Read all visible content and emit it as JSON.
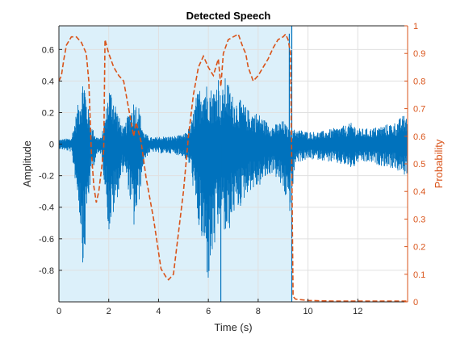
{
  "chart_data": {
    "type": "line",
    "title": "Detected Speech",
    "xlabel": "Time (s)",
    "ylabel_left": "Amplitude",
    "ylabel_right": "Probability",
    "xlim": [
      0,
      14
    ],
    "ylim_left": [
      -1,
      0.75
    ],
    "ylim_right": [
      0,
      1
    ],
    "grid": true,
    "legend": "none",
    "x_ticks": [
      0,
      2,
      4,
      6,
      8,
      10,
      12
    ],
    "y_ticks_left": [
      -0.8,
      -0.6,
      -0.4,
      -0.2,
      0,
      0.2,
      0.4,
      0.6
    ],
    "y_ticks_right": [
      0,
      0.1,
      0.2,
      0.3,
      0.4,
      0.5,
      0.6,
      0.7,
      0.8,
      0.9,
      1
    ],
    "speech_region": {
      "start": 0,
      "end": 9.35
    },
    "colors": {
      "waveform": "#0072BD",
      "probability": "#D95319",
      "speech_fill": "#DCF0FA",
      "speech_edge": "#0072BD",
      "grid": "#E0E0E0",
      "axis": "#262626"
    },
    "series": [
      {
        "axis": "left",
        "style": "waveform",
        "envelope": {
          "x": [
            0,
            0.5,
            0.8,
            0.9,
            1.0,
            1.1,
            1.3,
            1.5,
            1.7,
            1.9,
            2.0,
            2.2,
            2.4,
            2.6,
            2.8,
            3.0,
            3.2,
            3.4,
            3.6,
            3.8,
            4.0,
            4.5,
            5.0,
            5.3,
            5.5,
            5.8,
            6.0,
            6.2,
            6.4,
            6.5,
            6.7,
            7.0,
            7.3,
            7.6,
            8.0,
            8.3,
            8.6,
            9.0,
            9.3,
            9.5,
            10.0,
            10.5,
            11.0,
            11.5,
            11.8,
            12.0,
            12.5,
            13.0,
            13.5,
            13.8,
            14.0
          ],
          "upper": [
            0.03,
            0.04,
            0.28,
            0.35,
            0.48,
            0.3,
            0.12,
            0.05,
            0.04,
            0.22,
            0.38,
            0.32,
            0.18,
            0.1,
            0.2,
            0.28,
            0.25,
            0.08,
            0.05,
            0.04,
            0.05,
            0.05,
            0.06,
            0.12,
            0.3,
            0.42,
            0.38,
            0.35,
            0.45,
            0.3,
            0.44,
            0.3,
            0.28,
            0.22,
            0.2,
            0.15,
            0.12,
            0.15,
            0.08,
            0.1,
            0.08,
            0.08,
            0.1,
            0.12,
            0.14,
            0.1,
            0.1,
            0.12,
            0.14,
            0.18,
            0.2
          ],
          "lower": [
            -0.03,
            -0.05,
            -0.4,
            -0.6,
            -0.87,
            -0.5,
            -0.2,
            -0.08,
            -0.06,
            -0.35,
            -0.58,
            -0.45,
            -0.3,
            -0.15,
            -0.3,
            -0.55,
            -0.4,
            -0.12,
            -0.06,
            -0.05,
            -0.06,
            -0.06,
            -0.08,
            -0.15,
            -0.45,
            -0.7,
            -0.9,
            -0.7,
            -0.6,
            -0.4,
            -0.65,
            -0.45,
            -0.4,
            -0.3,
            -0.28,
            -0.22,
            -0.18,
            -0.3,
            -0.45,
            -0.12,
            -0.1,
            -0.1,
            -0.12,
            -0.14,
            -0.16,
            -0.12,
            -0.12,
            -0.14,
            -0.16,
            -0.2,
            -0.2
          ]
        },
        "spikes": [
          {
            "x": 6.5,
            "y": -1.0
          },
          {
            "x": 9.25,
            "y": 0.7
          }
        ]
      },
      {
        "axis": "right",
        "style": "dashed",
        "x": [
          0.0,
          0.1,
          0.2,
          0.3,
          0.5,
          0.7,
          0.9,
          1.1,
          1.2,
          1.3,
          1.4,
          1.5,
          1.6,
          1.8,
          1.85,
          2.0,
          2.2,
          2.4,
          2.6,
          2.7,
          2.8,
          2.9,
          3.0,
          3.1,
          3.3,
          3.5,
          3.8,
          4.0,
          4.1,
          4.3,
          4.4,
          4.6,
          4.8,
          5.0,
          5.2,
          5.4,
          5.6,
          5.8,
          6.0,
          6.2,
          6.4,
          6.5,
          6.6,
          6.8,
          7.0,
          7.2,
          7.4,
          7.5,
          7.6,
          7.8,
          8.0,
          8.2,
          8.4,
          8.6,
          8.8,
          9.0,
          9.1,
          9.2,
          9.3,
          9.35,
          9.4,
          9.5,
          10.0,
          11.0,
          12.0,
          13.0,
          14.0
        ],
        "values": [
          0.8,
          0.82,
          0.88,
          0.93,
          0.96,
          0.96,
          0.94,
          0.9,
          0.8,
          0.55,
          0.42,
          0.36,
          0.4,
          0.55,
          0.95,
          0.9,
          0.85,
          0.82,
          0.8,
          0.75,
          0.7,
          0.65,
          0.6,
          0.65,
          0.58,
          0.45,
          0.3,
          0.18,
          0.12,
          0.09,
          0.08,
          0.1,
          0.25,
          0.4,
          0.6,
          0.75,
          0.85,
          0.89,
          0.85,
          0.82,
          0.88,
          0.78,
          0.9,
          0.95,
          0.96,
          0.97,
          0.92,
          0.9,
          0.85,
          0.8,
          0.82,
          0.85,
          0.88,
          0.92,
          0.95,
          0.96,
          0.97,
          0.95,
          0.9,
          0.5,
          0.02,
          0.01,
          0.005,
          0.003,
          0.003,
          0.003,
          0.003
        ]
      }
    ]
  }
}
